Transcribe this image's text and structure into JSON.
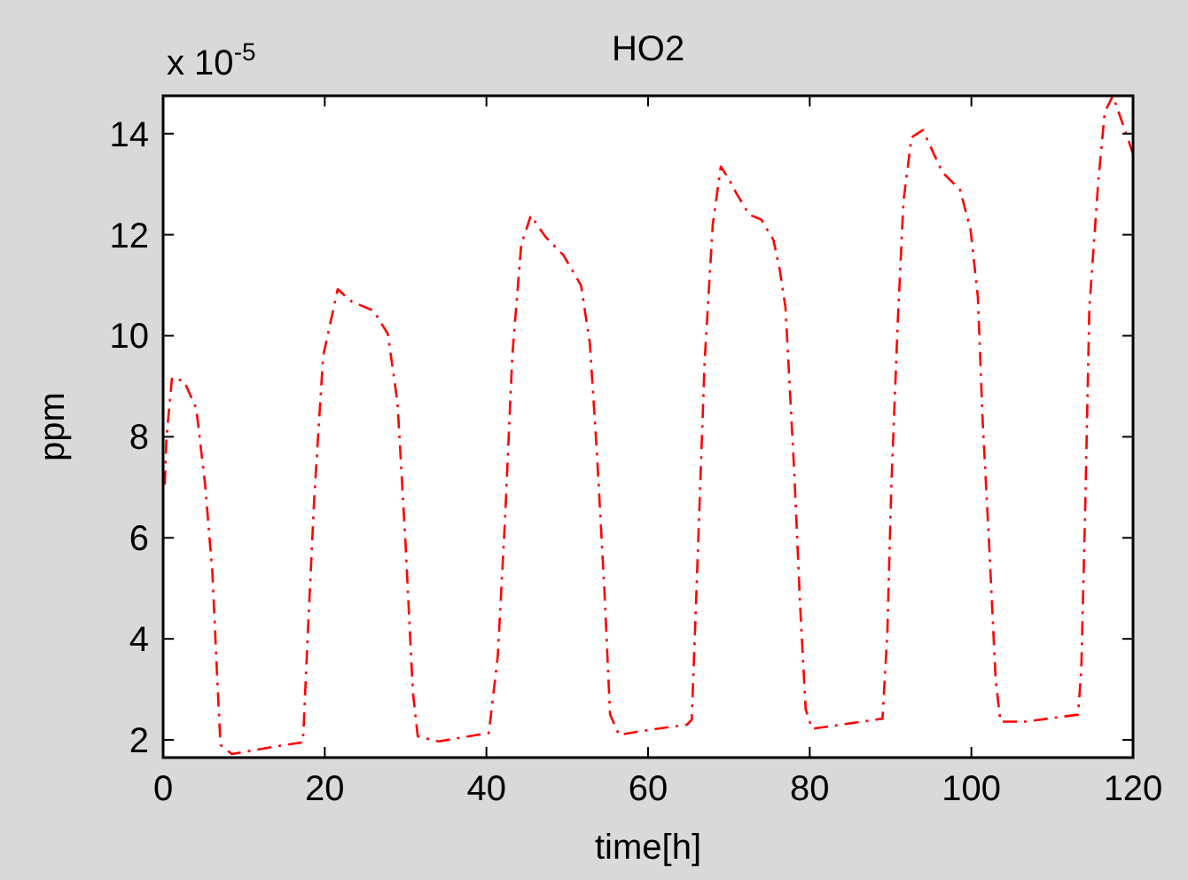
{
  "chart_data": {
    "type": "line",
    "title": "HO2",
    "xlabel": "time[h]",
    "ylabel": "ppm",
    "annotations": [
      "x 10$^{-5}$"
    ],
    "xlim": [
      0,
      120
    ],
    "xticks": [
      0,
      20,
      40,
      60,
      80,
      100,
      120
    ],
    "ylim": [
      1.65,
      14.75
    ],
    "yticks": [
      2,
      4,
      6,
      8,
      10,
      12,
      14
    ],
    "grid": false,
    "marker": "none",
    "line_style": "dashed",
    "series": [
      {
        "color": "#ff0000",
        "x": [
          0.2,
          0.4,
          1.1,
          2.6,
          4.1,
          5.2,
          6.1,
          6.7,
          7.1,
          8.5,
          15,
          17.3,
          17.9,
          18.7,
          19.8,
          21.6,
          23.4,
          26,
          27.8,
          29,
          30,
          30.9,
          31.5,
          34.1,
          40.3,
          41.4,
          42.3,
          43.2,
          44.3,
          45.5,
          47.3,
          49.5,
          51.7,
          52.8,
          53.7,
          54.6,
          55.3,
          56.4,
          59,
          62.5,
          64.8,
          65.4,
          66,
          67,
          68,
          69,
          70,
          71,
          72.5,
          74,
          75.5,
          76.3,
          77,
          78.1,
          78.8,
          79.5,
          80.3,
          89,
          89.6,
          90.1,
          90.9,
          91.6,
          92.6,
          94,
          96.4,
          98.6,
          99.9,
          100.8,
          101.4,
          102.2,
          103,
          103.6,
          106.6,
          113.2,
          113.6,
          114.1,
          114.6,
          115.7,
          116.5,
          117.5,
          119,
          120
        ],
        "values": [
          7.05,
          7.96,
          9.17,
          9.1,
          8.56,
          7.05,
          5.3,
          3.2,
          1.9,
          1.72,
          1.9,
          1.95,
          4.1,
          6.8,
          9.6,
          10.92,
          10.67,
          10.5,
          10.04,
          8.67,
          5.86,
          2.95,
          2.07,
          1.97,
          2.14,
          3.65,
          6.35,
          9.6,
          11.8,
          12.38,
          11.96,
          11.6,
          11.0,
          9.85,
          7.6,
          4.95,
          2.5,
          2.1,
          2.17,
          2.25,
          2.3,
          2.4,
          5,
          9.5,
          12.2,
          13.35,
          13.1,
          12.8,
          12.4,
          12.3,
          11.9,
          11.3,
          10.56,
          7.26,
          4.7,
          2.6,
          2.22,
          2.42,
          4.1,
          7.05,
          10.3,
          12.67,
          13.93,
          14.07,
          13.24,
          12.89,
          12.1,
          10.77,
          8.3,
          5.86,
          3.2,
          2.36,
          2.36,
          2.5,
          3.4,
          6.7,
          10.56,
          13.05,
          14.42,
          14.75,
          14.07,
          13.6
        ]
      }
    ]
  }
}
